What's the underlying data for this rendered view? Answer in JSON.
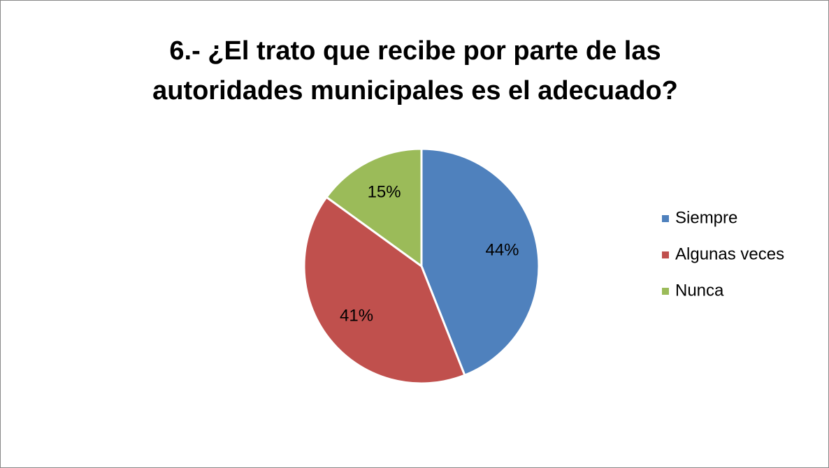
{
  "chart_data": {
    "type": "pie",
    "title": "6.- ¿El trato que recibe por parte de las autoridades municipales es el adecuado?",
    "categories": [
      "Siempre",
      "Algunas veces",
      "Nunca"
    ],
    "values": [
      44,
      41,
      15
    ],
    "value_labels": [
      "44%",
      "41%",
      "15%"
    ],
    "colors": [
      "#4f81bd",
      "#c0504d",
      "#9bbb59"
    ],
    "legend": "right"
  }
}
